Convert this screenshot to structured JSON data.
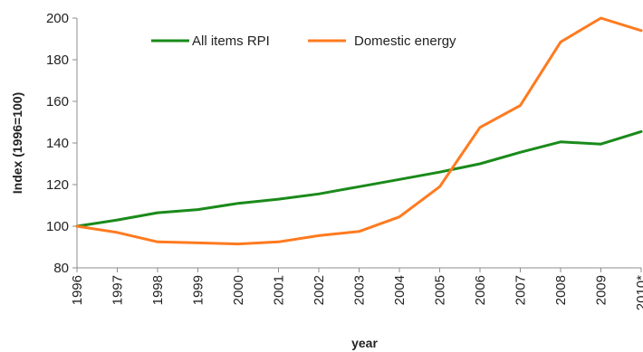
{
  "chart_data": {
    "type": "line",
    "title": "",
    "xlabel": "year",
    "ylabel": "Index (1996=100)",
    "categories": [
      "1996",
      "1997",
      "1998",
      "1999",
      "2000",
      "2001",
      "2002",
      "2003",
      "2004",
      "2005",
      "2006",
      "2007",
      "2008",
      "2009",
      "2010*"
    ],
    "ylim": [
      80,
      200
    ],
    "yticks": [
      80,
      100,
      120,
      140,
      160,
      180,
      200
    ],
    "grid": false,
    "legend_position": "top",
    "series": [
      {
        "name": "All items RPI",
        "color": "#1a8a1a",
        "values": [
          100,
          103,
          106.5,
          108,
          111,
          113,
          115.5,
          119,
          122.5,
          126,
          130,
          135.5,
          140.5,
          139.5,
          145.5
        ]
      },
      {
        "name": "Domestic energy",
        "color": "#ff7a1f",
        "values": [
          100,
          97,
          92.5,
          92,
          91.5,
          92.5,
          95.5,
          97.5,
          104.5,
          119,
          147.5,
          158,
          188.5,
          200,
          194
        ]
      }
    ]
  }
}
